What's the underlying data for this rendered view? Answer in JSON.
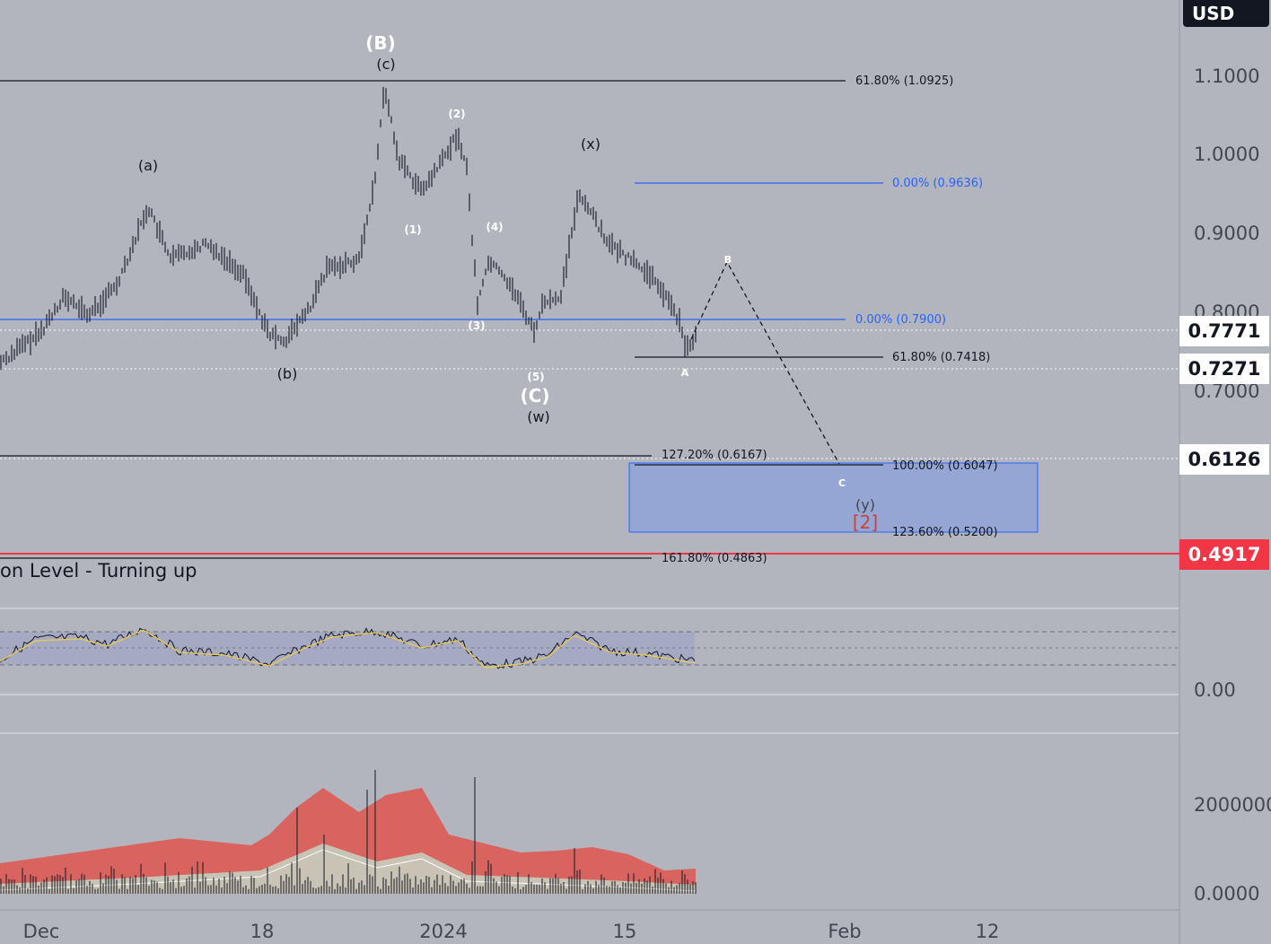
{
  "header": {
    "currency_label": "USD"
  },
  "indicator": {
    "title": "on Level - Turning up"
  },
  "price_tags": {
    "current_1": "0.7771",
    "current_2": "0.7271",
    "target": "0.6126",
    "red_level": "0.4917"
  },
  "colors": {
    "background": "#b2b5be",
    "blue_line": "#2962ff",
    "red_line": "#f23645",
    "zone_fill": "#8fa3d9",
    "volume_band_red": "#d9645f",
    "volume_band_beige": "#c8c3b4"
  },
  "chart_data": [
    {
      "type": "candlestick",
      "ylim": [
        0.44,
        1.15
      ],
      "y_ticks": [
        "1.1000",
        "1.0000",
        "0.9000",
        "0.8000",
        "0.7000"
      ],
      "x_ticks": [
        "Dec",
        "18",
        "2024",
        "15",
        "Feb",
        "12"
      ],
      "fib_levels": [
        {
          "label": "61.80% (1.0925)",
          "value": 1.0925,
          "color": "black"
        },
        {
          "label": "0.00% (0.9636)",
          "value": 0.9636,
          "color": "blue"
        },
        {
          "label": "0.00% (0.7900)",
          "value": 0.79,
          "color": "blue"
        },
        {
          "label": "61.80% (0.7418)",
          "value": 0.7418,
          "color": "black"
        },
        {
          "label": "127.20% (0.6167)",
          "value": 0.6167,
          "color": "black"
        },
        {
          "label": "100.00% (0.6047)",
          "value": 0.6047,
          "color": "black"
        },
        {
          "label": "123.60% (0.5200)",
          "value": 0.52,
          "color": "black"
        },
        {
          "label": "161.80% (0.4863)",
          "value": 0.4863,
          "color": "black"
        }
      ],
      "horizontal_levels": [
        {
          "value": 0.7771,
          "style": "dotted"
        },
        {
          "value": 0.7271,
          "style": "dotted"
        },
        {
          "value": 0.6126,
          "style": "dotted"
        },
        {
          "value": 0.4917,
          "style": "solid-red"
        }
      ],
      "target_zone": {
        "from": 0.52,
        "to": 0.6047
      },
      "wave_labels": [
        {
          "text": "(B)",
          "style": "white-large"
        },
        {
          "text": "(c)",
          "style": "dark"
        },
        {
          "text": "(a)",
          "style": "dark"
        },
        {
          "text": "(b)",
          "style": "dark"
        },
        {
          "text": "(2)",
          "style": "white-small"
        },
        {
          "text": "(1)",
          "style": "white-small"
        },
        {
          "text": "(4)",
          "style": "white-small"
        },
        {
          "text": "(3)",
          "style": "white-small"
        },
        {
          "text": "(5)",
          "style": "white-small"
        },
        {
          "text": "(C)",
          "style": "white-large"
        },
        {
          "text": "(w)",
          "style": "dark"
        },
        {
          "text": "(x)",
          "style": "dark"
        },
        {
          "text": "A",
          "style": "white-small"
        },
        {
          "text": "B",
          "style": "white-small"
        },
        {
          "text": "C",
          "style": "white-small"
        },
        {
          "text": "(y)",
          "style": "dark"
        },
        {
          "text": "[2]",
          "style": "red"
        }
      ]
    },
    {
      "type": "line",
      "name": "",
      "y_ticks": [
        "0.00"
      ]
    },
    {
      "type": "bar",
      "name": "",
      "y_ticks": [
        "2000000",
        "0.0000"
      ]
    }
  ]
}
